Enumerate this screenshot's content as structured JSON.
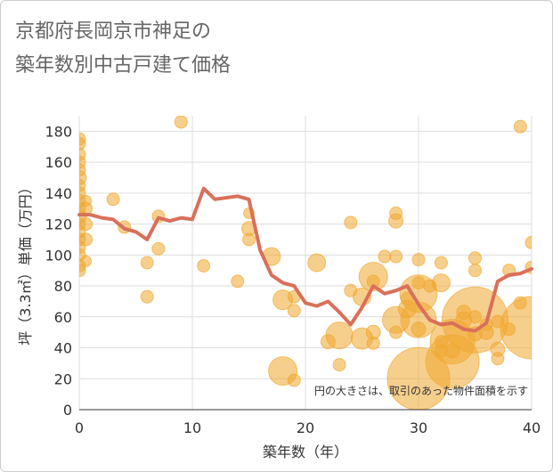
{
  "chart_data": {
    "type": "scatter",
    "title": [
      "京都府長岡京市神足の",
      "築年数別中古戸建て価格"
    ],
    "xlabel": "築年数（年）",
    "ylabel": "坪（3.3㎡）単価（万円）",
    "note": "円の大きさは、取引のあった物件面積を示す",
    "xlim": [
      0,
      40
    ],
    "ylim": [
      0,
      190
    ],
    "x_ticks": [
      "0",
      "10",
      "20",
      "30",
      "40"
    ],
    "y_ticks": [
      "0",
      "20",
      "40",
      "60",
      "80",
      "100",
      "120",
      "140",
      "160",
      "180"
    ],
    "colors": {
      "bubble": "#F0A830",
      "line": "#D9705A",
      "grid": "#dddddd",
      "frame": "#cccccc"
    },
    "bubbles": [
      [
        0,
        175,
        7
      ],
      [
        0,
        172,
        7
      ],
      [
        0,
        165,
        7
      ],
      [
        0,
        160,
        7
      ],
      [
        0,
        155,
        7
      ],
      [
        0,
        150,
        8
      ],
      [
        0,
        145,
        7
      ],
      [
        0,
        140,
        7
      ],
      [
        0,
        135,
        7
      ],
      [
        0,
        130,
        7
      ],
      [
        0,
        125,
        8
      ],
      [
        0,
        120,
        7
      ],
      [
        0,
        115,
        7
      ],
      [
        0,
        110,
        7
      ],
      [
        0,
        105,
        7
      ],
      [
        0,
        100,
        7
      ],
      [
        0,
        93,
        7
      ],
      [
        0,
        90,
        7
      ],
      [
        0.6,
        135,
        6
      ],
      [
        0.6,
        130,
        7
      ],
      [
        0.6,
        120,
        7
      ],
      [
        0.6,
        110,
        7
      ],
      [
        0.6,
        96,
        6
      ],
      [
        3,
        136,
        7
      ],
      [
        4,
        118,
        7
      ],
      [
        6,
        95,
        7
      ],
      [
        6,
        73,
        7
      ],
      [
        7,
        125,
        7
      ],
      [
        7,
        104,
        7
      ],
      [
        9,
        186,
        7
      ],
      [
        11,
        93,
        7
      ],
      [
        14,
        83,
        7
      ],
      [
        15,
        127,
        6
      ],
      [
        15,
        117,
        8
      ],
      [
        15,
        110,
        7
      ],
      [
        17,
        99,
        10
      ],
      [
        18,
        71,
        11
      ],
      [
        18,
        25,
        16
      ],
      [
        19,
        64,
        7
      ],
      [
        19,
        73,
        7
      ],
      [
        19,
        19,
        7
      ],
      [
        21,
        95,
        10
      ],
      [
        22,
        44,
        8
      ],
      [
        23,
        29,
        7
      ],
      [
        23,
        48,
        15
      ],
      [
        24,
        121,
        7
      ],
      [
        24,
        77,
        7
      ],
      [
        25,
        46,
        12
      ],
      [
        25,
        73,
        10
      ],
      [
        26,
        83,
        7
      ],
      [
        26,
        86,
        16
      ],
      [
        26,
        50,
        8
      ],
      [
        26,
        43,
        7
      ],
      [
        27,
        99,
        7
      ],
      [
        28,
        127,
        7
      ],
      [
        28,
        122,
        8
      ],
      [
        28,
        99,
        7
      ],
      [
        28,
        58,
        15
      ],
      [
        28,
        50,
        7
      ],
      [
        29,
        65,
        10
      ],
      [
        29,
        72,
        7
      ],
      [
        30,
        97,
        7
      ],
      [
        30,
        82,
        7
      ],
      [
        30,
        75,
        21
      ],
      [
        30,
        58,
        20
      ],
      [
        30,
        52,
        8
      ],
      [
        30,
        20,
        35
      ],
      [
        31,
        80,
        7
      ],
      [
        32,
        95,
        7
      ],
      [
        32,
        82,
        10
      ],
      [
        32,
        44,
        7
      ],
      [
        32,
        38,
        7
      ],
      [
        33,
        38,
        8
      ],
      [
        33,
        44,
        25
      ],
      [
        33,
        31,
        30
      ],
      [
        34,
        63,
        8
      ],
      [
        34,
        58,
        9
      ],
      [
        35,
        98,
        7
      ],
      [
        35,
        90,
        7
      ],
      [
        35,
        60,
        7
      ],
      [
        35,
        58,
        37
      ],
      [
        35,
        49,
        8
      ],
      [
        36,
        50,
        8
      ],
      [
        36,
        55,
        7
      ],
      [
        37,
        57,
        7
      ],
      [
        37,
        39,
        8
      ],
      [
        37,
        33,
        7
      ],
      [
        38,
        90,
        7
      ],
      [
        38,
        52,
        7
      ],
      [
        39,
        183,
        7
      ],
      [
        39,
        69,
        7
      ],
      [
        40,
        108,
        7
      ],
      [
        40,
        92,
        7
      ],
      [
        40,
        53,
        35
      ]
    ],
    "line": {
      "x": [
        0,
        1,
        2,
        3,
        4,
        5,
        6,
        7,
        8,
        9,
        10,
        11,
        12,
        13,
        14,
        15,
        16,
        17,
        18,
        19,
        20,
        21,
        22,
        23,
        24,
        25,
        26,
        27,
        28,
        29,
        30,
        31,
        32,
        33,
        34,
        35,
        36,
        37,
        38,
        39,
        40
      ],
      "y": [
        126,
        126,
        124,
        123,
        117,
        115,
        110,
        124,
        122,
        124,
        123,
        143,
        136,
        137,
        138,
        136,
        103,
        87,
        82,
        80,
        69,
        67,
        70,
        63,
        55,
        66,
        80,
        75,
        77,
        80,
        68,
        58,
        55,
        56,
        52,
        51,
        56,
        83,
        87,
        88,
        91
      ]
    }
  }
}
